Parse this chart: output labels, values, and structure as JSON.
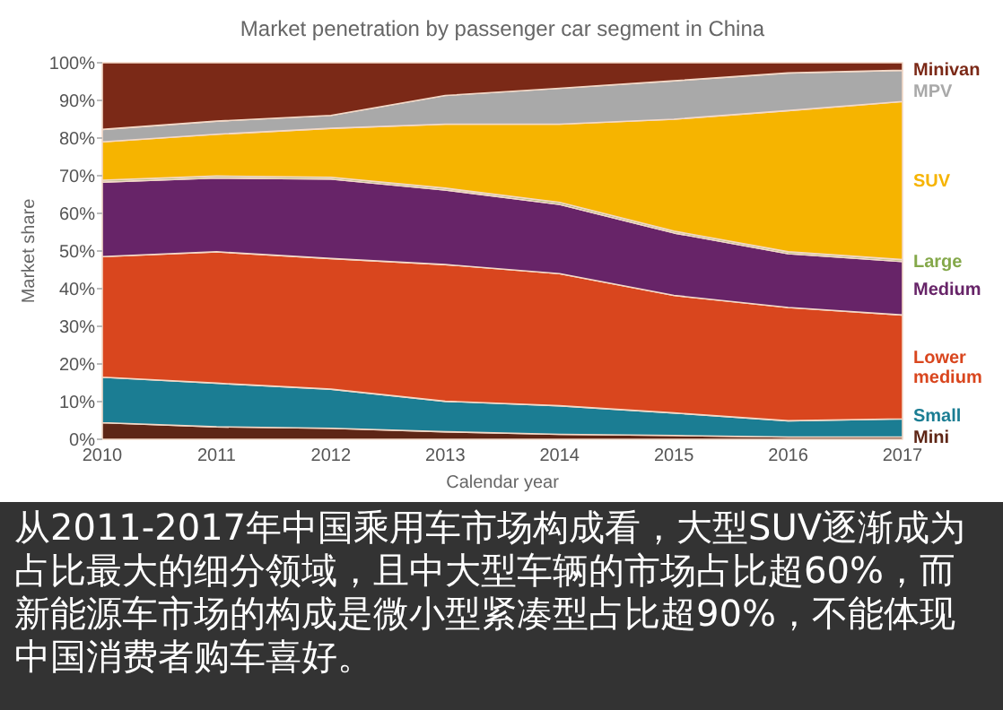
{
  "chart_data": {
    "type": "area",
    "stacked": true,
    "title": "Market penetration by passenger car segment in China",
    "xlabel": "Calendar year",
    "ylabel": "Market share",
    "x": [
      2010,
      2011,
      2012,
      2013,
      2014,
      2015,
      2016,
      2017
    ],
    "series": [
      {
        "name": "Mini",
        "color": "#5e2616",
        "values": [
          4.4,
          3.3,
          2.9,
          2,
          1.3,
          1,
          0.6,
          0.6
        ]
      },
      {
        "name": "Small",
        "color": "#1b7d93",
        "values": [
          12.1,
          11.6,
          10.4,
          8.1,
          7.6,
          6,
          4.3,
          4.8
        ]
      },
      {
        "name": "Lower medium",
        "color": "#d9461e",
        "values": [
          32,
          34.9,
          34.7,
          36.3,
          35.1,
          31.2,
          30.1,
          27.6
        ]
      },
      {
        "name": "Medium",
        "color": "#672468",
        "values": [
          19.8,
          19.6,
          21.1,
          19.8,
          18.4,
          16.6,
          14.3,
          14.2
        ]
      },
      {
        "name": "Large",
        "color": "#84a84a",
        "values": [
          0.5,
          0.5,
          0.5,
          0.5,
          0.5,
          0.5,
          0.5,
          0.5
        ]
      },
      {
        "name": "SUV",
        "color": "#f6b400",
        "values": [
          10.2,
          11.1,
          13,
          17,
          20.8,
          29.7,
          37.5,
          42
        ]
      },
      {
        "name": "MPV",
        "color": "#a9a9a9",
        "values": [
          3.3,
          3.5,
          3.4,
          7.6,
          9.5,
          10.2,
          10,
          8.3
        ]
      },
      {
        "name": "Minivan",
        "color": "#7b2917",
        "values": [
          17.7,
          15.5,
          14,
          8.7,
          6.8,
          4.8,
          2.7,
          2
        ]
      }
    ],
    "xlim": [
      2010,
      2017
    ],
    "xticks": [
      2010,
      2011,
      2012,
      2013,
      2014,
      2015,
      2016,
      2017
    ],
    "ylim": [
      0,
      100
    ],
    "yticks": [
      {
        "value": 0,
        "label": "0%"
      },
      {
        "value": 10,
        "label": "10%"
      },
      {
        "value": 20,
        "label": "20%"
      },
      {
        "value": 30,
        "label": "30%"
      },
      {
        "value": 40,
        "label": "40%"
      },
      {
        "value": 50,
        "label": "50%"
      },
      {
        "value": 60,
        "label": "60%"
      },
      {
        "value": 70,
        "label": "70%"
      },
      {
        "value": 80,
        "label": "80%"
      },
      {
        "value": 90,
        "label": "90%"
      },
      {
        "value": 100,
        "label": "100%"
      }
    ],
    "legend": "right",
    "grid": false,
    "annotations": [
      "从2011-2017年中国乘用车市场构成看，大型SUV逐渐成为占比最大的细分领域，且中大型车辆的市场占比超60%，而新能源车市场的构成是微小型紧凑型占比超90%，不能体现中国消费者购车喜好。"
    ]
  }
}
